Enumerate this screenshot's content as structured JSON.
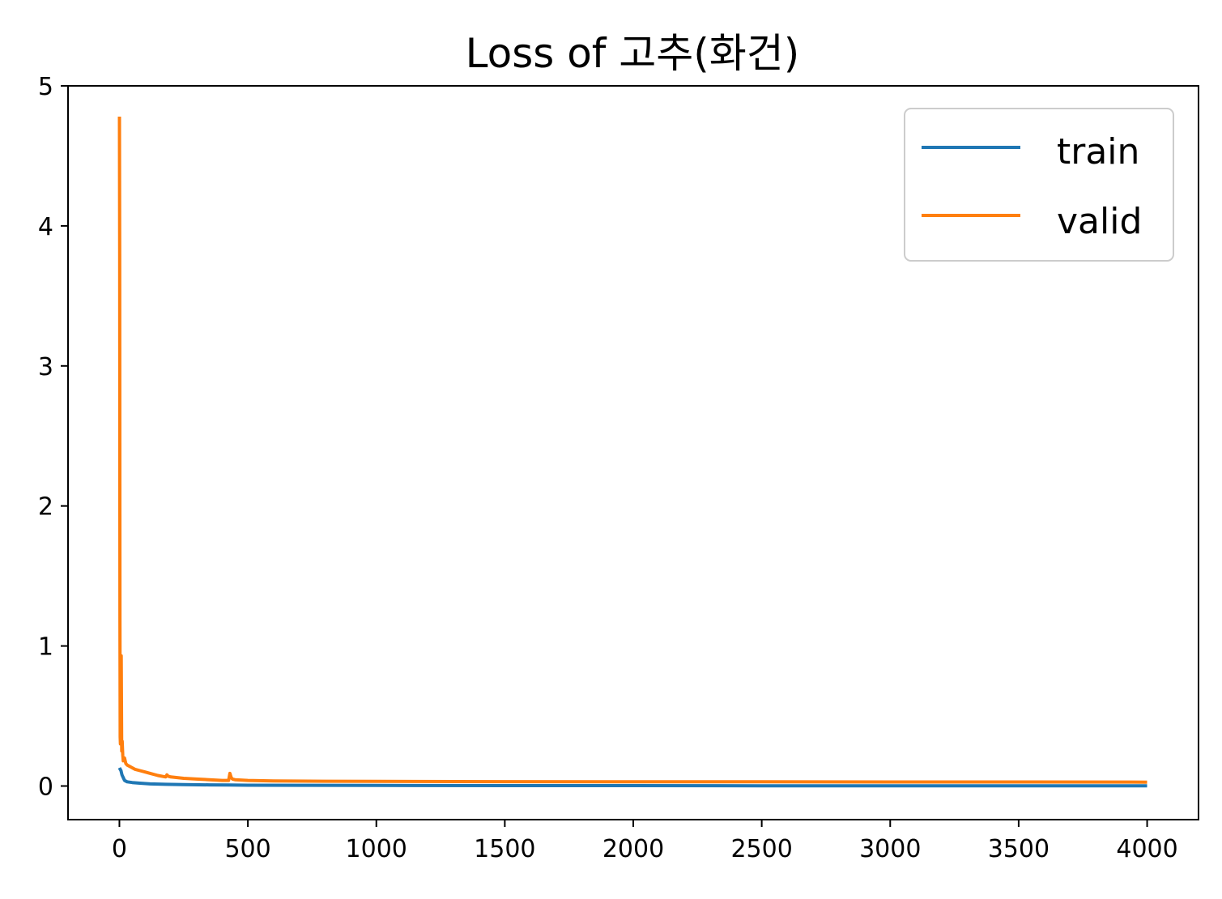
{
  "chart_data": {
    "type": "line",
    "title": "Loss of 고추(화건)",
    "xlabel": "",
    "ylabel": "",
    "xlim": [
      -200,
      4200
    ],
    "ylim": [
      -0.24,
      5.0
    ],
    "xticks": [
      0,
      500,
      1000,
      1500,
      2000,
      2500,
      3000,
      3500,
      4000
    ],
    "yticks": [
      0,
      1,
      2,
      3,
      4,
      5
    ],
    "grid": false,
    "legend": {
      "position": "top-right",
      "entries": [
        "train",
        "valid"
      ]
    },
    "colors": {
      "train": "#1f77b4",
      "valid": "#ff7f0e"
    },
    "series": [
      {
        "name": "train",
        "x": [
          0,
          3,
          6,
          10,
          15,
          20,
          30,
          50,
          80,
          120,
          180,
          250,
          350,
          430,
          500,
          700,
          1000,
          1500,
          2000,
          2500,
          3000,
          3500,
          4000
        ],
        "y": [
          0.13,
          0.12,
          0.11,
          0.08,
          0.06,
          0.04,
          0.03,
          0.025,
          0.02,
          0.015,
          0.012,
          0.01,
          0.008,
          0.007,
          0.006,
          0.005,
          0.004,
          0.003,
          0.003,
          0.002,
          0.002,
          0.002,
          0.002
        ]
      },
      {
        "name": "valid",
        "x": [
          0,
          1,
          2,
          3,
          4,
          5,
          7,
          9,
          11,
          13,
          15,
          20,
          25,
          30,
          40,
          50,
          60,
          80,
          100,
          120,
          150,
          180,
          185,
          190,
          200,
          250,
          300,
          350,
          400,
          425,
          430,
          435,
          440,
          450,
          500,
          600,
          800,
          1000,
          1500,
          2000,
          2500,
          3000,
          3500,
          4000
        ],
        "y": [
          4.78,
          3.8,
          1.2,
          0.35,
          0.3,
          0.55,
          0.93,
          0.25,
          0.32,
          0.22,
          0.18,
          0.2,
          0.16,
          0.15,
          0.14,
          0.13,
          0.12,
          0.11,
          0.1,
          0.09,
          0.075,
          0.065,
          0.08,
          0.07,
          0.065,
          0.055,
          0.05,
          0.045,
          0.04,
          0.04,
          0.09,
          0.06,
          0.05,
          0.045,
          0.04,
          0.036,
          0.034,
          0.033,
          0.031,
          0.03,
          0.03,
          0.029,
          0.029,
          0.028
        ]
      }
    ]
  }
}
